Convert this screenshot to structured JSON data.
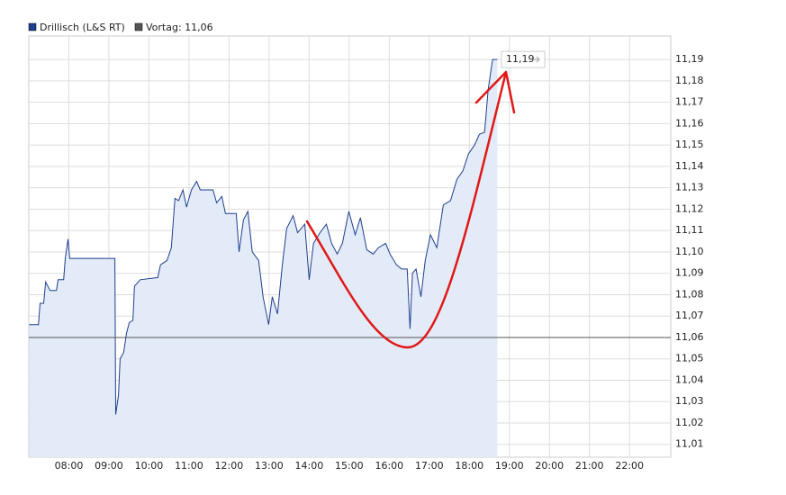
{
  "chart_data": {
    "type": "line",
    "series": [
      {
        "name": "Drillisch (L&S RT)",
        "color": "#1f3f8f",
        "x": [
          7.01,
          7.24,
          7.28,
          7.37,
          7.42,
          7.53,
          7.69,
          7.73,
          7.87,
          7.91,
          7.98,
          8.02,
          9.15,
          9.17,
          9.24,
          9.28,
          9.37,
          9.44,
          9.51,
          9.6,
          9.64,
          9.78,
          10.22,
          10.29,
          10.45,
          10.56,
          10.65,
          10.74,
          10.85,
          10.94,
          11.06,
          11.19,
          11.28,
          11.42,
          11.6,
          11.69,
          11.82,
          11.91,
          12.18,
          12.25,
          12.36,
          12.47,
          12.58,
          12.74,
          12.85,
          12.99,
          13.08,
          13.21,
          13.33,
          13.44,
          13.6,
          13.71,
          13.89,
          14.0,
          14.11,
          14.27,
          14.43,
          14.56,
          14.7,
          14.83,
          14.99,
          15.15,
          15.28,
          15.44,
          15.6,
          15.73,
          15.91,
          16.02,
          16.18,
          16.31,
          16.45,
          16.52,
          16.58,
          16.67,
          16.79,
          16.9,
          17.03,
          17.19,
          17.35,
          17.53,
          17.69,
          17.84,
          17.98,
          18.13,
          18.25,
          18.38,
          18.47,
          18.58,
          18.7
        ],
        "values": [
          11.066,
          11.066,
          11.076,
          11.076,
          11.086,
          11.082,
          11.082,
          11.087,
          11.087,
          11.097,
          11.106,
          11.097,
          11.097,
          11.024,
          11.033,
          11.05,
          11.053,
          11.062,
          11.067,
          11.068,
          11.084,
          11.087,
          11.088,
          11.094,
          11.096,
          11.102,
          11.125,
          11.124,
          11.129,
          11.121,
          11.129,
          11.133,
          11.129,
          11.129,
          11.129,
          11.123,
          11.126,
          11.118,
          11.118,
          11.1,
          11.115,
          11.119,
          11.1,
          11.096,
          11.079,
          11.066,
          11.079,
          11.071,
          11.094,
          11.111,
          11.117,
          11.109,
          11.113,
          11.087,
          11.104,
          11.109,
          11.113,
          11.104,
          11.099,
          11.104,
          11.119,
          11.108,
          11.116,
          11.101,
          11.099,
          11.102,
          11.104,
          11.099,
          11.094,
          11.092,
          11.092,
          11.064,
          11.09,
          11.092,
          11.079,
          11.096,
          11.108,
          11.102,
          11.122,
          11.124,
          11.134,
          11.138,
          11.146,
          11.15,
          11.155,
          11.156,
          11.176,
          11.19,
          11.19
        ]
      }
    ],
    "previous_close": {
      "value": 11.06,
      "label": "Vortag: 11,06"
    },
    "last_price": {
      "value": 11.19,
      "label": "11,19"
    },
    "xlim": [
      7.0,
      23.03
    ],
    "ylim": [
      11.004,
      11.201
    ],
    "xticks": [
      {
        "value": 8,
        "label": "08:00"
      },
      {
        "value": 9,
        "label": "09:00"
      },
      {
        "value": 10,
        "label": "10:00"
      },
      {
        "value": 11,
        "label": "11:00"
      },
      {
        "value": 12,
        "label": "12:00"
      },
      {
        "value": 13,
        "label": "13:00"
      },
      {
        "value": 14,
        "label": "14:00"
      },
      {
        "value": 15,
        "label": "15:00"
      },
      {
        "value": 16,
        "label": "16:00"
      },
      {
        "value": 17,
        "label": "17:00"
      },
      {
        "value": 18,
        "label": "18:00"
      },
      {
        "value": 19,
        "label": "19:00"
      },
      {
        "value": 20,
        "label": "20:00"
      },
      {
        "value": 21,
        "label": "21:00"
      },
      {
        "value": 22,
        "label": "22:00"
      }
    ],
    "yticks": [
      {
        "value": 11.01,
        "label": "11,01"
      },
      {
        "value": 11.02,
        "label": "11,02"
      },
      {
        "value": 11.03,
        "label": "11,03"
      },
      {
        "value": 11.04,
        "label": "11,04"
      },
      {
        "value": 11.05,
        "label": "11,05"
      },
      {
        "value": 11.06,
        "label": "11,06"
      },
      {
        "value": 11.07,
        "label": "11,07"
      },
      {
        "value": 11.08,
        "label": "11,08"
      },
      {
        "value": 11.09,
        "label": "11,09"
      },
      {
        "value": 11.1,
        "label": "11,10"
      },
      {
        "value": 11.11,
        "label": "11,11"
      },
      {
        "value": 11.12,
        "label": "11,12"
      },
      {
        "value": 11.13,
        "label": "11,13"
      },
      {
        "value": 11.14,
        "label": "11,14"
      },
      {
        "value": 11.15,
        "label": "11,15"
      },
      {
        "value": 11.16,
        "label": "11,16"
      },
      {
        "value": 11.17,
        "label": "11,17"
      },
      {
        "value": 11.18,
        "label": "11,18"
      },
      {
        "value": 11.19,
        "label": "11,19"
      }
    ],
    "grid": true,
    "area_color": "#e3ebf8",
    "previous_close_color": "#555555"
  }
}
